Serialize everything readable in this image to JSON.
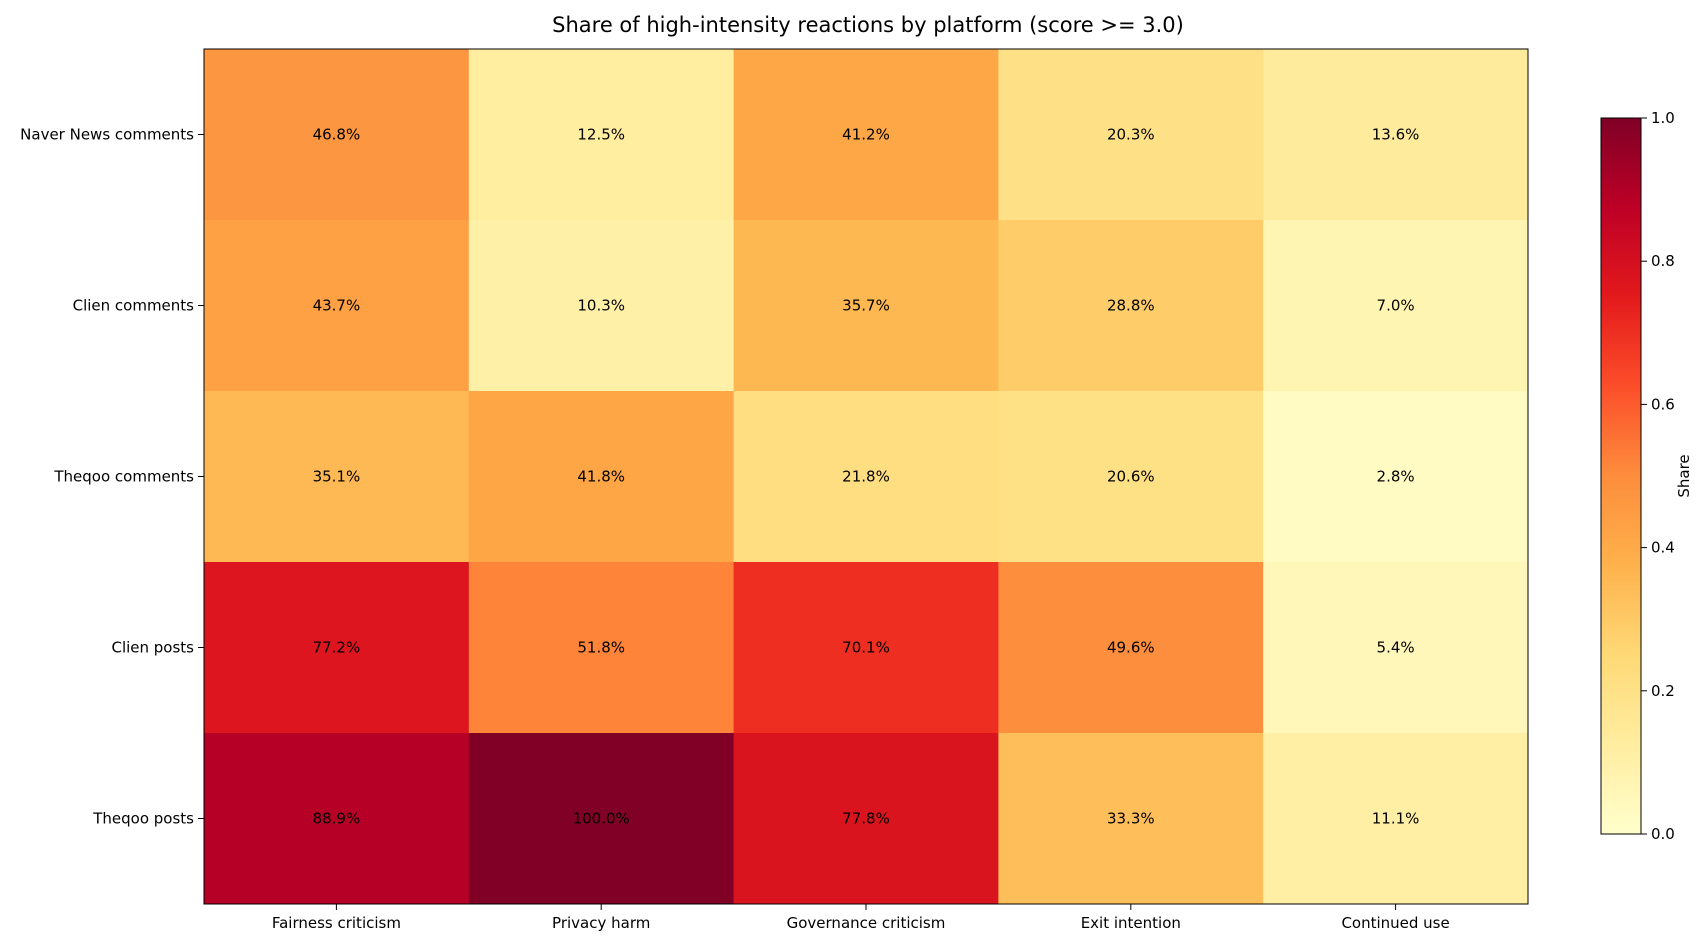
{
  "chart_data": {
    "type": "heatmap",
    "title": "Share of high-intensity reactions by platform (score >= 3.0)",
    "xlabel": "",
    "ylabel": "",
    "columns": [
      "Fairness criticism",
      "Privacy harm",
      "Governance criticism",
      "Exit intention",
      "Continued use"
    ],
    "rows": [
      "Naver News comments",
      "Clien comments",
      "Theqoo comments",
      "Clien posts",
      "Theqoo posts"
    ],
    "values": [
      [
        0.468,
        0.125,
        0.412,
        0.203,
        0.136
      ],
      [
        0.437,
        0.103,
        0.357,
        0.288,
        0.07
      ],
      [
        0.351,
        0.418,
        0.218,
        0.206,
        0.028
      ],
      [
        0.772,
        0.518,
        0.701,
        0.496,
        0.054
      ],
      [
        0.889,
        1.0,
        0.778,
        0.333,
        0.111
      ]
    ],
    "cell_labels": [
      [
        "46.8%",
        "12.5%",
        "41.2%",
        "20.3%",
        "13.6%"
      ],
      [
        "43.7%",
        "10.3%",
        "35.7%",
        "28.8%",
        "7.0%"
      ],
      [
        "35.1%",
        "41.8%",
        "21.8%",
        "20.6%",
        "2.8%"
      ],
      [
        "77.2%",
        "51.8%",
        "70.1%",
        "49.6%",
        "5.4%"
      ],
      [
        "88.9%",
        "100.0%",
        "77.8%",
        "33.3%",
        "11.1%"
      ]
    ],
    "colormap": "YlOrRd",
    "colorbar": {
      "label": "Share",
      "range": [
        0.0,
        1.0
      ],
      "ticks": [
        "0.0",
        "0.2",
        "0.4",
        "0.6",
        "0.8",
        "1.0"
      ]
    },
    "grid": false,
    "legend": "none"
  }
}
